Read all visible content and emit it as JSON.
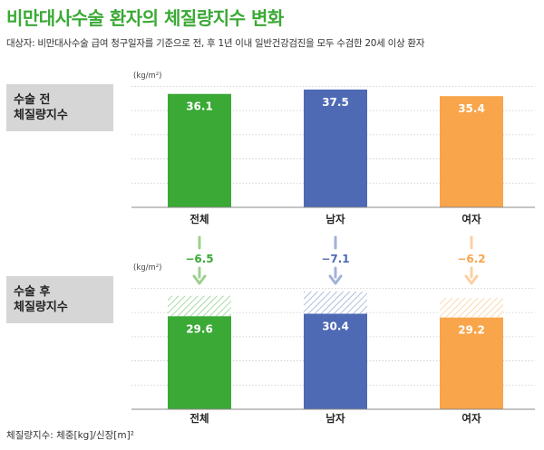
{
  "title": "비만대사수술 환자의 체질량지수 변화",
  "subtitle": "대상자: 비만대사수술 급여 청구일자를 기준으로 전, 후 1년 이내 일반건강검진을 모두 수검한 20세 이상 환자",
  "footnote": "체질량지수: 체중[kg]/신장[m]²",
  "colors": {
    "title": "#3aa935",
    "total": "#3aa935",
    "male": "#4e6ab5",
    "female": "#f8a54b",
    "panel": "#d6d6d6"
  },
  "chart_data": [
    {
      "type": "bar",
      "panel_label": [
        "수술 전",
        "체질량지수"
      ],
      "ylabel": "(kg/m²)",
      "categories": [
        "전체",
        "남자",
        "여자"
      ],
      "values": [
        36.1,
        37.5,
        35.4
      ],
      "value_labels": [
        "36.1",
        "37.5",
        "35.4"
      ],
      "ylim": [
        0,
        38.5
      ],
      "grid": true
    },
    {
      "type": "bar",
      "panel_label": [
        "수술 후",
        "체질량지수"
      ],
      "ylabel": "(kg/m²)",
      "categories": [
        "전체",
        "남자",
        "여자"
      ],
      "values": [
        29.6,
        30.4,
        29.2
      ],
      "value_labels": [
        "29.6",
        "30.4",
        "29.2"
      ],
      "reference_values": [
        36.1,
        37.5,
        35.4
      ],
      "ylim": [
        0,
        38.5
      ],
      "grid": true
    }
  ],
  "changes": {
    "values": [
      -6.5,
      -7.1,
      -6.2
    ],
    "labels": [
      "−6.5",
      "−7.1",
      "−6.2"
    ]
  }
}
